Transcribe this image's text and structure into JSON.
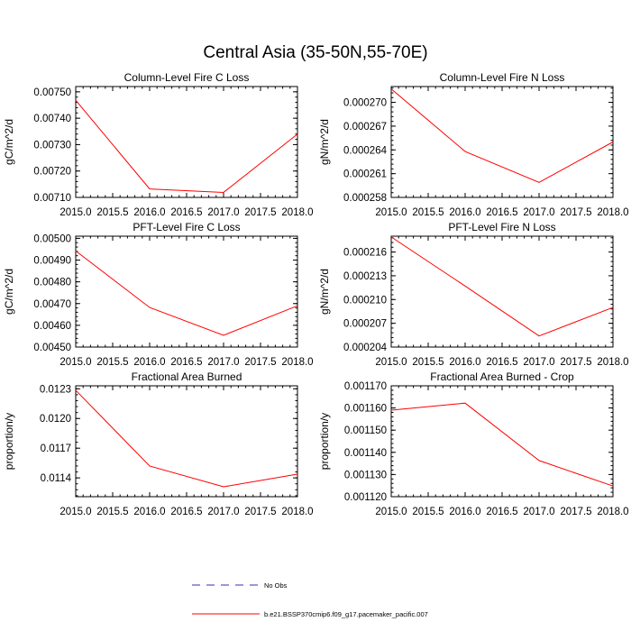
{
  "figure": {
    "title": "Central Asia (35-50N,55-70E)"
  },
  "legend": {
    "items": [
      {
        "label": "No Obs",
        "color": "#3b2fa8",
        "style": "dashed"
      },
      {
        "label": "b.e21.BSSP370cmip6.f09_g17.pacemaker_pacific.007",
        "color": "#ff0000",
        "style": "solid"
      }
    ]
  },
  "chart_data": [
    {
      "type": "line",
      "title": "Column-Level Fire C Loss",
      "ylabel": "gC/m^2/d",
      "xlabel": "",
      "x": [
        2015,
        2016,
        2017,
        2018
      ],
      "series": [
        {
          "name": "b.e21.BSSP370cmip6.f09_g17.pacemaker_pacific.007",
          "color": "#ff0000",
          "values": [
            0.007468,
            0.007132,
            0.007119,
            0.00734
          ]
        }
      ],
      "xlim": [
        2015,
        2018
      ],
      "ylim": [
        0.0071,
        0.00752
      ],
      "xticks": [
        "2015.0",
        "2015.5",
        "2016.0",
        "2016.5",
        "2017.0",
        "2017.5",
        "2018.0"
      ],
      "yticks": [
        "0.00710",
        "0.00720",
        "0.00730",
        "0.00740",
        "0.00750"
      ],
      "grid": false
    },
    {
      "type": "line",
      "title": "Column-Level Fire N Loss",
      "ylabel": "gN/m^2/d",
      "xlabel": "",
      "x": [
        2015,
        2016,
        2017,
        2018
      ],
      "series": [
        {
          "name": "b.e21.BSSP370cmip6.f09_g17.pacemaker_pacific.007",
          "color": "#ff0000",
          "values": [
            0.0002717,
            0.0002638,
            0.0002599,
            0.000265
          ]
        }
      ],
      "xlim": [
        2015,
        2018
      ],
      "ylim": [
        0.000258,
        0.000272
      ],
      "xticks": [
        "2015.0",
        "2015.5",
        "2016.0",
        "2016.5",
        "2017.0",
        "2017.5",
        "2018.0"
      ],
      "yticks": [
        "0.000258",
        "0.000261",
        "0.000264",
        "0.000267",
        "0.000270"
      ],
      "grid": false
    },
    {
      "type": "line",
      "title": "PFT-Level Fire C Loss",
      "ylabel": "gC/m^2/d",
      "xlabel": "",
      "x": [
        2015,
        2016,
        2017,
        2018
      ],
      "series": [
        {
          "name": "b.e21.BSSP370cmip6.f09_g17.pacemaker_pacific.007",
          "color": "#ff0000",
          "values": [
            0.004942,
            0.004682,
            0.004554,
            0.00469
          ]
        }
      ],
      "xlim": [
        2015,
        2018
      ],
      "ylim": [
        0.0045,
        0.00501
      ],
      "xticks": [
        "2015.0",
        "2015.5",
        "2016.0",
        "2016.5",
        "2017.0",
        "2017.5",
        "2018.0"
      ],
      "yticks": [
        "0.00450",
        "0.00460",
        "0.00470",
        "0.00480",
        "0.00490",
        "0.00500"
      ],
      "grid": false
    },
    {
      "type": "line",
      "title": "PFT-Level Fire N Loss",
      "ylabel": "gN/m^2/d",
      "xlabel": "",
      "x": [
        2015,
        2016,
        2017,
        2018
      ],
      "series": [
        {
          "name": "b.e21.BSSP370cmip6.f09_g17.pacemaker_pacific.007",
          "color": "#ff0000",
          "values": [
            0.0002179,
            0.0002117,
            0.0002054,
            0.000209
          ]
        }
      ],
      "xlim": [
        2015,
        2018
      ],
      "ylim": [
        0.000204,
        0.000218
      ],
      "xticks": [
        "2015.0",
        "2015.5",
        "2016.0",
        "2016.5",
        "2017.0",
        "2017.5",
        "2018.0"
      ],
      "yticks": [
        "0.000204",
        "0.000207",
        "0.000210",
        "0.000213",
        "0.000216"
      ],
      "grid": false
    },
    {
      "type": "line",
      "title": "Fractional Area Burned",
      "ylabel": "proportion/y",
      "xlabel": "",
      "x": [
        2015,
        2016,
        2017,
        2018
      ],
      "series": [
        {
          "name": "b.e21.BSSP370cmip6.f09_g17.pacemaker_pacific.007",
          "color": "#ff0000",
          "values": [
            0.012285,
            0.01152,
            0.01131,
            0.011438
          ]
        }
      ],
      "xlim": [
        2015,
        2018
      ],
      "ylim": [
        0.01121,
        0.01233
      ],
      "xticks": [
        "2015.0",
        "2015.5",
        "2016.0",
        "2016.5",
        "2017.0",
        "2017.5",
        "2018.0"
      ],
      "yticks": [
        "0.0114",
        "0.0117",
        "0.0120",
        "0.0123"
      ],
      "grid": false
    },
    {
      "type": "line",
      "title": "Fractional Area Burned - Crop",
      "ylabel": "proportion/y",
      "xlabel": "",
      "x": [
        2015,
        2016,
        2017,
        2018
      ],
      "series": [
        {
          "name": "b.e21.BSSP370cmip6.f09_g17.pacemaker_pacific.007",
          "color": "#ff0000",
          "values": [
            0.001159,
            0.0011622,
            0.0011363,
            0.0011248
          ]
        }
      ],
      "xlim": [
        2015,
        2018
      ],
      "ylim": [
        0.00112,
        0.00117
      ],
      "xticks": [
        "2015.0",
        "2015.5",
        "2016.0",
        "2016.5",
        "2017.0",
        "2017.5",
        "2018.0"
      ],
      "yticks": [
        "0.001120",
        "0.001130",
        "0.001140",
        "0.001150",
        "0.001160",
        "0.001170"
      ],
      "grid": false
    }
  ]
}
